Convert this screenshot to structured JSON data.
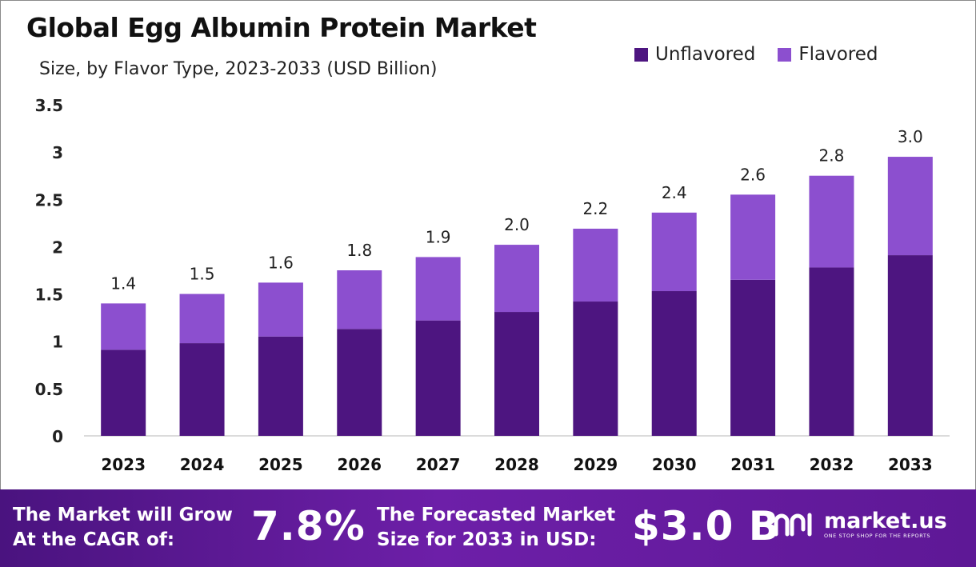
{
  "header": {
    "title": "Global Egg Albumin Protein Market",
    "subtitle": "Size, by Flavor Type, 2023-2033 (USD Billion)"
  },
  "legend": [
    {
      "label": "Unflavored",
      "color": "#4d1580"
    },
    {
      "label": "Flavored",
      "color": "#8c4fcf"
    }
  ],
  "chart_data": {
    "type": "bar",
    "stacked": true,
    "categories": [
      "2023",
      "2024",
      "2025",
      "2026",
      "2027",
      "2028",
      "2029",
      "2030",
      "2031",
      "2032",
      "2033"
    ],
    "series": [
      {
        "name": "Unflavored",
        "color": "#4d1580",
        "values": [
          0.91,
          0.98,
          1.05,
          1.13,
          1.22,
          1.31,
          1.42,
          1.53,
          1.65,
          1.78,
          1.91
        ]
      },
      {
        "name": "Flavored",
        "color": "#8c4fcf",
        "values": [
          0.49,
          0.52,
          0.57,
          0.62,
          0.67,
          0.71,
          0.77,
          0.83,
          0.9,
          0.97,
          1.04
        ]
      }
    ],
    "totals": [
      "1.4",
      "1.5",
      "1.6",
      "1.8",
      "1.9",
      "2.0",
      "2.2",
      "2.4",
      "2.6",
      "2.8",
      "3.0"
    ],
    "ylim": [
      0,
      3.5
    ],
    "yticks": [
      "0",
      "0.5",
      "1",
      "1.5",
      "2",
      "2.5",
      "3",
      "3.5"
    ],
    "grid": false,
    "legend_position": "top-right"
  },
  "footer": {
    "cagr_label_line1": "The Market will Grow",
    "cagr_label_line2": "At the CAGR of:",
    "cagr_value": "7.8%",
    "forecast_label_line1": "The Forecasted Market",
    "forecast_label_line2": "Size for 2033 in USD:",
    "forecast_value": "$3.0 B",
    "brand_name": "market.us",
    "brand_tagline": "ONE STOP SHOP FOR THE REPORTS"
  }
}
